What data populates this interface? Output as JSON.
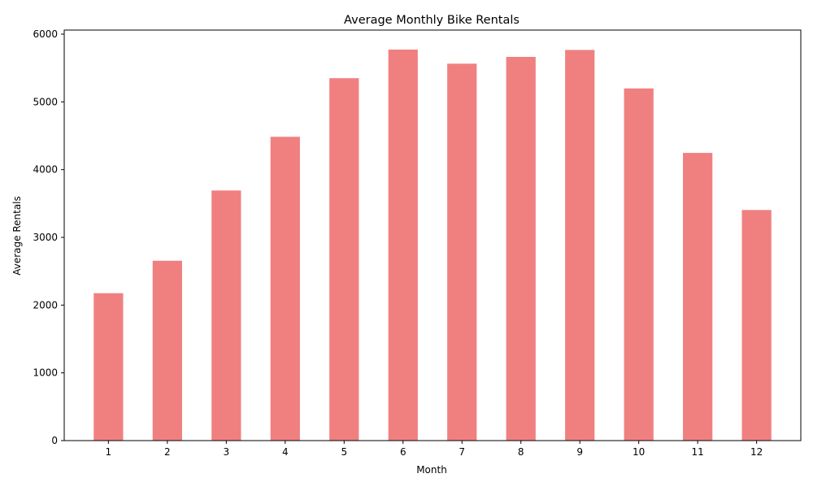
{
  "chart_data": {
    "type": "bar",
    "title": "Average Monthly Bike Rentals",
    "xlabel": "Month",
    "ylabel": "Average Rentals",
    "categories": [
      "1",
      "2",
      "3",
      "4",
      "5",
      "6",
      "7",
      "8",
      "9",
      "10",
      "11",
      "12"
    ],
    "values": [
      2176,
      2655,
      3692,
      4485,
      5350,
      5772,
      5564,
      5664,
      5767,
      5199,
      4247,
      3404
    ],
    "ylim": [
      0,
      6060
    ],
    "yticks": [
      0,
      1000,
      2000,
      3000,
      4000,
      5000,
      6000
    ],
    "bar_color": "#f08080",
    "grid": false,
    "legend": "none"
  }
}
